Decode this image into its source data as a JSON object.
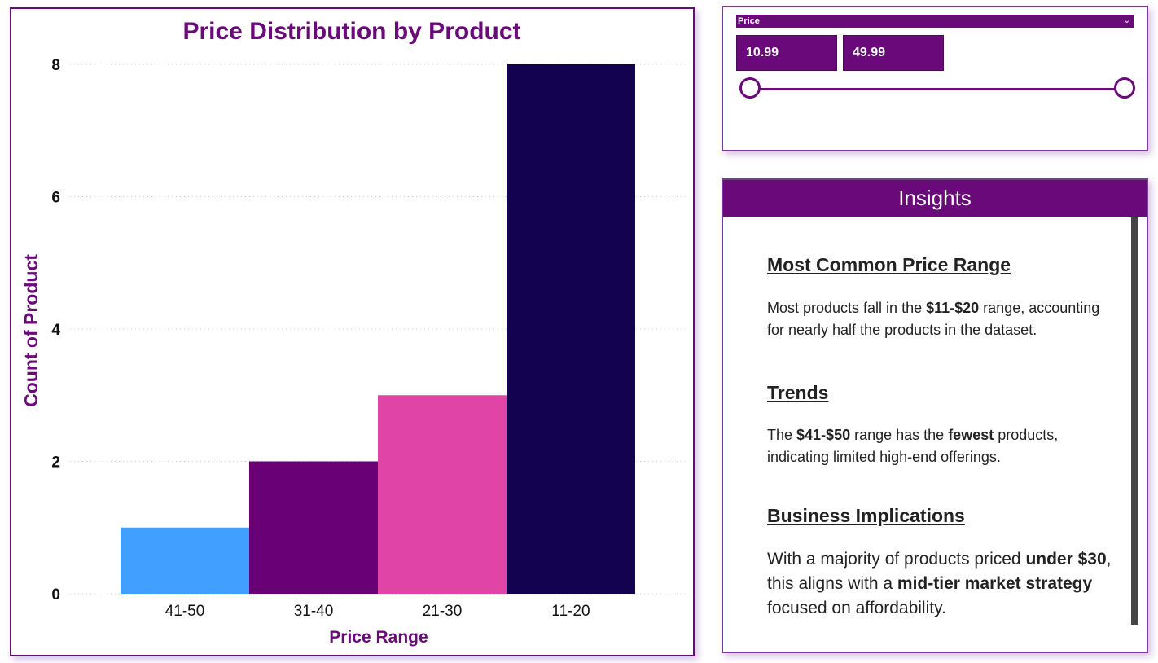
{
  "chart_data": {
    "type": "bar",
    "title": "Price Distribution by Product",
    "xlabel": "Price Range",
    "ylabel": "Count of Product",
    "categories": [
      "41-50",
      "31-40",
      "21-30",
      "11-20"
    ],
    "values": [
      1,
      2,
      3,
      8
    ],
    "colors": [
      "#41a0ff",
      "#6a0076",
      "#e044a7",
      "#12024f"
    ],
    "yticks": [
      0,
      2,
      4,
      6,
      8
    ],
    "ylim": [
      0,
      8
    ],
    "grid": true,
    "legend": "none"
  },
  "slicer": {
    "title": "Price",
    "min_value": "10.99",
    "max_value": "49.99",
    "min_fraction": 0,
    "max_fraction": 1
  },
  "insights": {
    "title": "Insights",
    "sections": [
      {
        "heading": "Most Common Price Range",
        "parts": [
          {
            "t": "Most products fall in the ",
            "b": false
          },
          {
            "t": "$11-$20",
            "b": true
          },
          {
            "t": " range, accounting for nearly half the products in the dataset.",
            "b": false
          }
        ]
      },
      {
        "heading": "Trends",
        "parts": [
          {
            "t": "The ",
            "b": false
          },
          {
            "t": "$41-$50",
            "b": true
          },
          {
            "t": " range has the ",
            "b": false
          },
          {
            "t": "fewest",
            "b": true
          },
          {
            "t": " products, indicating limited high-end offerings.",
            "b": false
          }
        ]
      },
      {
        "heading": "Business Implications",
        "parts": [
          {
            "t": "With a majority of products priced ",
            "b": false
          },
          {
            "t": "under $30",
            "b": true
          },
          {
            "t": ", this aligns with a ",
            "b": false
          },
          {
            "t": "mid-tier market strategy",
            "b": true
          },
          {
            "t": " focused on affordability.",
            "b": false
          }
        ]
      }
    ]
  },
  "colors": {
    "accent": "#6a0a7a"
  }
}
